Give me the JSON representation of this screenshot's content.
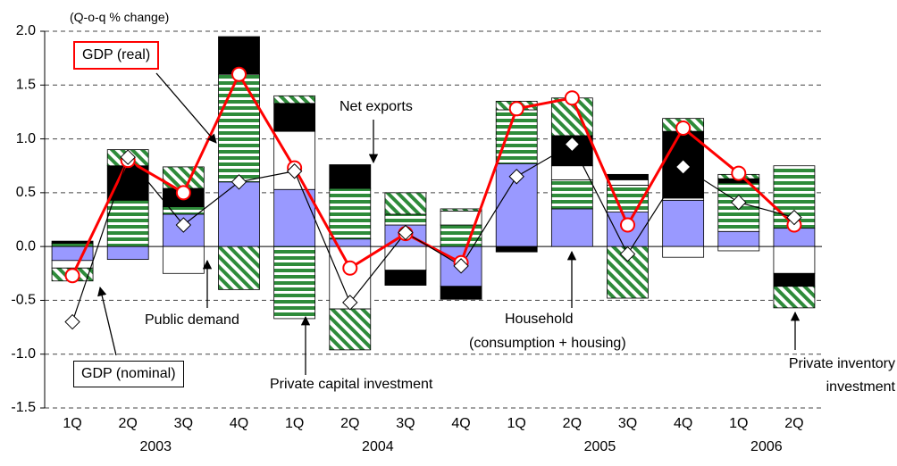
{
  "chart_data": {
    "type": "stacked_bar_line",
    "axis_note": "(Q-o-q % change)",
    "groups": [
      {
        "label": "2003",
        "categories": [
          "1Q",
          "2Q",
          "3Q",
          "4Q"
        ]
      },
      {
        "label": "2004",
        "categories": [
          "1Q",
          "2Q",
          "3Q",
          "4Q"
        ]
      },
      {
        "label": "2005",
        "categories": [
          "1Q",
          "2Q",
          "3Q",
          "4Q"
        ]
      },
      {
        "label": "2006",
        "categories": [
          "1Q",
          "2Q"
        ]
      }
    ],
    "series": [
      {
        "name": "Household",
        "note": "(consumption + housing)",
        "color": "#9999ff",
        "pattern": "solid",
        "values": [
          -0.13,
          -0.12,
          0.3,
          0.6,
          0.53,
          0.07,
          0.2,
          -0.37,
          0.77,
          0.35,
          0.32,
          0.43,
          0.14,
          0.17
        ]
      },
      {
        "name": "Private capital investment",
        "color": "#2e8b3a",
        "pattern": "horizontal",
        "values": [
          0.03,
          0.43,
          0.07,
          1.0,
          -0.67,
          0.47,
          0.1,
          0.2,
          0.5,
          0.27,
          0.25,
          0.02,
          0.45,
          0.58
        ]
      },
      {
        "name": "Public demand",
        "color": "#ffffff",
        "pattern": "solid",
        "values": [
          -0.07,
          0,
          -0.25,
          0,
          0.54,
          -0.58,
          -0.22,
          0.13,
          0,
          0.13,
          0.05,
          -0.1,
          -0.04,
          -0.25
        ]
      },
      {
        "name": "Net exports",
        "color": "#000000",
        "pattern": "solid",
        "values": [
          0.02,
          0.32,
          0.17,
          0.35,
          0.26,
          0.22,
          -0.14,
          -0.12,
          -0.05,
          0.28,
          0.05,
          0.62,
          0.04,
          -0.12
        ]
      },
      {
        "name": "Private inventory investment",
        "color": "#2e8b3a",
        "pattern": "diagonal",
        "values": [
          -0.12,
          0.15,
          0.2,
          -0.4,
          0.07,
          -0.38,
          0.2,
          0.02,
          0.08,
          0.35,
          -0.48,
          0.12,
          0.04,
          -0.2
        ]
      }
    ],
    "lines": [
      {
        "name": "GDP (real)",
        "color": "#ff0000",
        "marker": "circle",
        "values": [
          -0.27,
          0.8,
          0.5,
          1.6,
          0.73,
          -0.2,
          0.12,
          -0.15,
          1.28,
          1.38,
          0.2,
          1.1,
          0.68,
          0.2
        ]
      },
      {
        "name": "GDP (nominal)",
        "color": "#000000",
        "marker": "diamond",
        "values": [
          -0.7,
          0.83,
          0.2,
          0.6,
          0.7,
          -0.52,
          0.13,
          -0.18,
          0.65,
          0.95,
          -0.07,
          0.74,
          0.41,
          0.27
        ]
      }
    ],
    "ylim": [
      -1.5,
      2.0
    ],
    "yticks": [
      {
        "value": 2.0,
        "label": "2.0"
      },
      {
        "value": 1.5,
        "label": "1.5"
      },
      {
        "value": 1.0,
        "label": "1.0"
      },
      {
        "value": 0.5,
        "label": "0.5"
      },
      {
        "value": 0,
        "label": "0.0"
      },
      {
        "value": -0.5,
        "label": "-0.5"
      },
      {
        "value": -1.0,
        "label": "-1.0"
      },
      {
        "value": -1.5,
        "label": "-1.5"
      }
    ],
    "grid": true
  }
}
